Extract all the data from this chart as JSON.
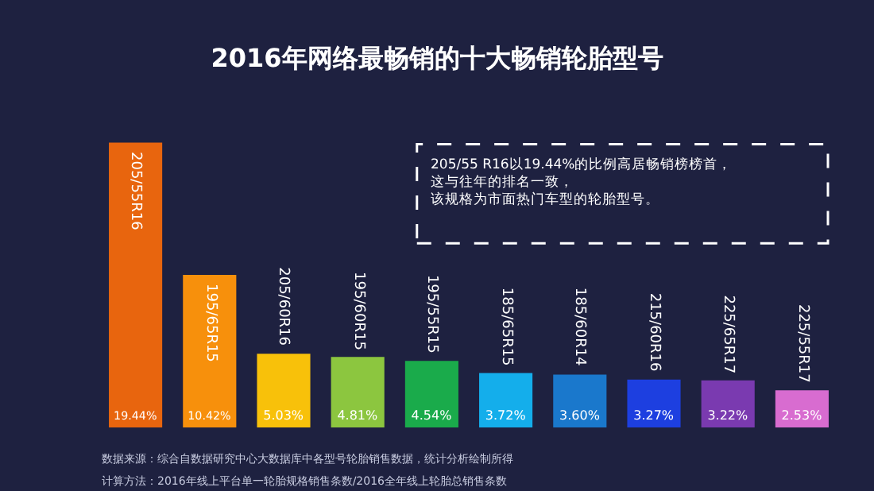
{
  "chart_data": {
    "type": "bar",
    "title": "2016年网络最畅销的十大畅销轮胎型号",
    "categories": [
      "205/55R16",
      "195/65R15",
      "205/60R16",
      "195/60R15",
      "195/55R15",
      "185/65R15",
      "185/60R14",
      "215/60R16",
      "225/65R17",
      "225/55R17"
    ],
    "values": [
      19.44,
      10.42,
      5.03,
      4.81,
      4.54,
      3.72,
      3.6,
      3.27,
      3.22,
      2.53
    ],
    "colors": [
      "#e8650e",
      "#f7900c",
      "#f8c10a",
      "#8cc63f",
      "#1aab4b",
      "#14aeeb",
      "#1a78cc",
      "#1d3fe0",
      "#7a3ab0",
      "#d86cd0"
    ],
    "value_labels": [
      "19.44%",
      "10.42%",
      "5.03%",
      "4.81%",
      "4.54%",
      "3.72%",
      "3.60%",
      "3.27%",
      "3.22%",
      "2.53%"
    ],
    "annotations": [
      "205/55 R16以19.44%的比例高居畅销榜榜首，这与往年的排名一致，该规格为市面热门车型的轮胎型号。",
      "数据来源：综合自数据研究中心大数据库中各型号轮胎销售数据，统计分析绘制所得",
      "计算方法：2016年线上平台单一轮胎规格销售条数/2016全年线上轮胎总销售条数"
    ]
  }
}
